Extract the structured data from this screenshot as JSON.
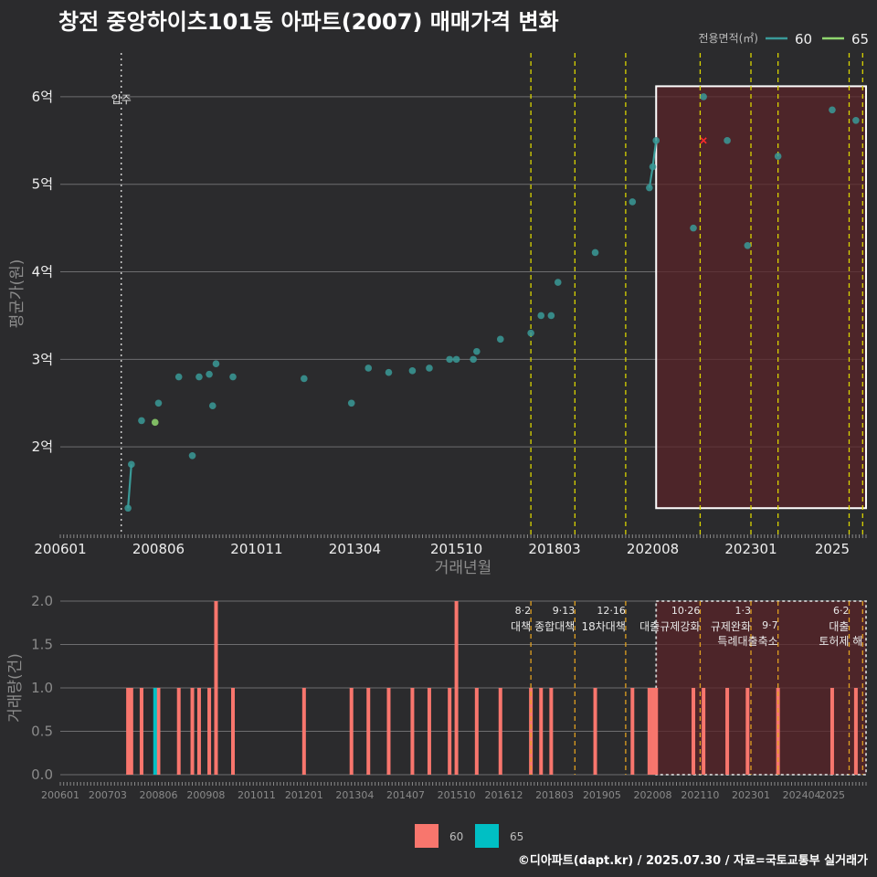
{
  "title": "창전 중앙하이츠101동 아파트(2007) 매매가격 변화",
  "footer": "©디아파트(dapt.kr) / 2025.07.30 / 자료=국토교통부 실거래가",
  "colors": {
    "background": "#2b2b2d",
    "s60": "#3a9a98",
    "s65": "#8fd66e",
    "bar60": "#f8766d",
    "bar65": "#00bfc4",
    "policy": "#d9d400",
    "highlight": "#5a2428"
  },
  "chart_data": [
    {
      "type": "line",
      "title": "창전 중앙하이츠101동 아파트(2007) 매매가격 변화",
      "xlabel": "거래년월",
      "ylabel": "평균가(원)",
      "x_ticks": [
        "200601",
        "200806",
        "201011",
        "201304",
        "201510",
        "201803",
        "202008",
        "202301",
        "2025"
      ],
      "y_ticks": [
        {
          "v": 2,
          "label": "2억"
        },
        {
          "v": 3,
          "label": "3억"
        },
        {
          "v": 4,
          "label": "4억"
        },
        {
          "v": 5,
          "label": "5억"
        },
        {
          "v": 6,
          "label": "6억"
        }
      ],
      "ylim": [
        1.0,
        6.5
      ],
      "legend_title": "전용면적(㎡)",
      "legend_position": "top-right",
      "move_in": {
        "x": "2007.07",
        "label": "입주"
      },
      "series": [
        {
          "name": "60",
          "points": [
            [
              "2007.09",
              1.3
            ],
            [
              "2007.10",
              1.8
            ],
            [
              "2008.01",
              2.3
            ],
            [
              "2008.06",
              2.5
            ],
            [
              "2008.12",
              2.8
            ],
            [
              "2009.04",
              1.9
            ],
            [
              "2009.06",
              2.8
            ],
            [
              "2009.09",
              2.83
            ],
            [
              "2009.10",
              2.47
            ],
            [
              "2009.11",
              2.95
            ],
            [
              "2010.04",
              2.8
            ],
            [
              "2012.01",
              2.78
            ],
            [
              "2013.03",
              2.5
            ],
            [
              "2013.08",
              2.9
            ],
            [
              "2014.02",
              2.85
            ],
            [
              "2014.09",
              2.87
            ],
            [
              "2015.02",
              2.9
            ],
            [
              "2015.08",
              3.0
            ],
            [
              "2015.10",
              3.0
            ],
            [
              "2016.03",
              3.0
            ],
            [
              "2016.04",
              3.09
            ],
            [
              "2016.11",
              3.23
            ],
            [
              "2017.08",
              3.3
            ],
            [
              "2017.11",
              3.5
            ],
            [
              "2018.02",
              3.5
            ],
            [
              "2018.04",
              3.88
            ],
            [
              "2019.03",
              4.22
            ],
            [
              "2020.02",
              4.8
            ],
            [
              "2020.07",
              4.96
            ],
            [
              "2020.08",
              5.2
            ],
            [
              "2020.09",
              5.5
            ],
            [
              "2021.08",
              4.5
            ],
            [
              "2021.11",
              6.0
            ],
            [
              "2022.06",
              5.5
            ],
            [
              "2022.12",
              4.3
            ],
            [
              "2023.09",
              5.32
            ],
            [
              "2025.01",
              5.85
            ],
            [
              "2025.08",
              5.73
            ]
          ]
        },
        {
          "name": "65",
          "points": [
            [
              "2008.05",
              2.28
            ]
          ]
        }
      ],
      "lines": [
        [
          [
            "2007.09",
            1.3
          ],
          [
            "2007.10",
            1.8
          ]
        ],
        [
          [
            "2020.07",
            4.96
          ],
          [
            "2020.08",
            5.2
          ],
          [
            "2020.09",
            5.5
          ]
        ]
      ],
      "cross_marker": {
        "x": "2021.11",
        "y": 5.5
      },
      "highlight": {
        "x0": "2020.09",
        "x1": "2025.11",
        "y0": 1.3,
        "y1": 6.12
      }
    },
    {
      "type": "bar",
      "xlabel": "",
      "ylabel": "거래량(건)",
      "x_ticks": [
        "200601",
        "200703",
        "200806",
        "200908",
        "201011",
        "201201",
        "201304",
        "201407",
        "201510",
        "201612",
        "201803",
        "201905",
        "202008",
        "202110",
        "202301",
        "202404",
        "2025"
      ],
      "y_ticks": [
        "0.0",
        "0.5",
        "1.0",
        "1.5",
        "2.0"
      ],
      "ylim": [
        0,
        2
      ],
      "legend_position": "bottom",
      "series": [
        {
          "name": "60",
          "bars": [
            [
              "2007.09",
              1
            ],
            [
              "2007.10",
              1
            ],
            [
              "2008.01",
              1
            ],
            [
              "2008.06",
              1
            ],
            [
              "2008.12",
              1
            ],
            [
              "2009.04",
              1
            ],
            [
              "2009.06",
              1
            ],
            [
              "2009.09",
              1
            ],
            [
              "2009.11",
              2
            ],
            [
              "2010.04",
              1
            ],
            [
              "2012.01",
              1
            ],
            [
              "2013.03",
              1
            ],
            [
              "2013.08",
              1
            ],
            [
              "2014.02",
              1
            ],
            [
              "2014.09",
              1
            ],
            [
              "2015.02",
              1
            ],
            [
              "2015.08",
              1
            ],
            [
              "2015.10",
              2
            ],
            [
              "2016.04",
              1
            ],
            [
              "2016.11",
              1
            ],
            [
              "2017.08",
              1
            ],
            [
              "2017.11",
              1
            ],
            [
              "2018.02",
              1
            ],
            [
              "2019.03",
              1
            ],
            [
              "2020.02",
              1
            ],
            [
              "2020.07",
              1
            ],
            [
              "2020.08",
              1
            ],
            [
              "2020.09",
              1
            ],
            [
              "2021.08",
              1
            ],
            [
              "2021.11",
              1
            ],
            [
              "2022.06",
              1
            ],
            [
              "2022.12",
              1
            ],
            [
              "2023.09",
              1
            ],
            [
              "2025.01",
              1
            ],
            [
              "2025.08",
              1
            ]
          ]
        },
        {
          "name": "65",
          "bars": [
            [
              "2008.05",
              1
            ]
          ]
        }
      ],
      "highlight": {
        "x0": "2020.09",
        "x1": "2025.11",
        "y0": 0,
        "y1": 2
      }
    }
  ],
  "policies": [
    {
      "x": "2017.08",
      "date": "8·2",
      "name": "대책",
      "row": 0
    },
    {
      "x": "2018.09",
      "date": "9·13",
      "name": "종합대책",
      "row": 0
    },
    {
      "x": "2019.12",
      "date": "12·16",
      "name": "18차대책",
      "row": 0
    },
    {
      "x": "2021.10",
      "date": "10·26",
      "name": "대출규제강화",
      "row": 0
    },
    {
      "x": "2023.01",
      "date": "1·3",
      "name": "규제완화",
      "row": 0
    },
    {
      "x": "2023.09",
      "date": "9·7",
      "name": "특례대출축소",
      "row": 1
    },
    {
      "x": "2025.06",
      "date": "6·2",
      "name": "대출",
      "row": 0
    },
    {
      "x": "2025.10",
      "date": "",
      "name": "토허제 해",
      "row": 1
    }
  ]
}
